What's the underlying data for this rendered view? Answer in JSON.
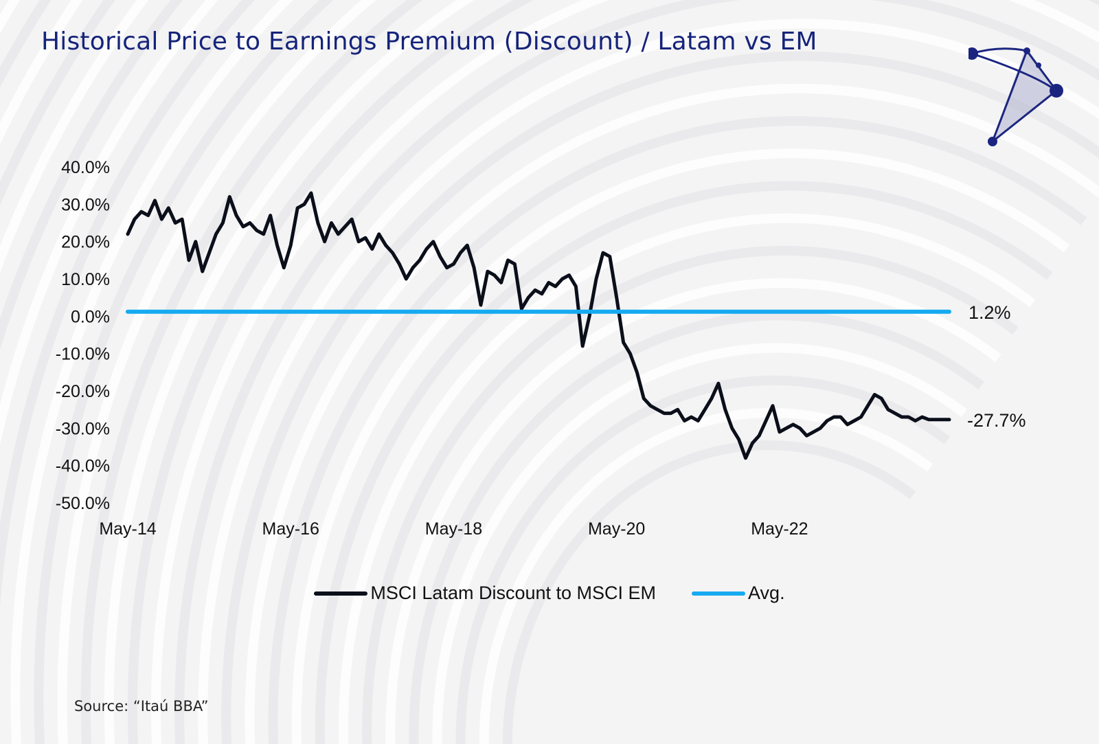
{
  "page": {
    "title": "Historical Price to Earnings Premium (Discount) / Latam vs EM",
    "source": "Source: “Itaú BBA”"
  },
  "colors": {
    "title": "#15237a",
    "series_line": "#0b0f1a",
    "avg_line": "#16aaf0",
    "logo": "#1b2580"
  },
  "logo": {
    "icon": "constellation-logo-icon"
  },
  "chart_data": {
    "type": "line",
    "title": "",
    "xlabel": "",
    "ylabel": "",
    "ylim": [
      -50,
      40
    ],
    "y_ticks": [
      40,
      30,
      20,
      10,
      0,
      -10,
      -20,
      -30,
      -40,
      -50
    ],
    "y_tick_labels": [
      "40.0%",
      "30.0%",
      "20.0%",
      "10.0%",
      "0.0%",
      "-10.0%",
      "-20.0%",
      "-30.0%",
      "-40.0%",
      "-50.0%"
    ],
    "x_range": [
      "2014-05",
      "2024-06"
    ],
    "x_ticks": [
      "2014-05",
      "2016-05",
      "2018-05",
      "2020-05",
      "2022-05"
    ],
    "x_tick_labels": [
      "May-14",
      "May-16",
      "May-18",
      "May-20",
      "May-22"
    ],
    "grid": false,
    "legend_position": "bottom",
    "series": [
      {
        "name": "MSCI Latam Discount to MSCI EM",
        "color": "#0b0f1a",
        "end_label": "-27.7%",
        "x": [
          "2014-05",
          "2014-06",
          "2014-07",
          "2014-08",
          "2014-09",
          "2014-10",
          "2014-11",
          "2014-12",
          "2015-01",
          "2015-02",
          "2015-03",
          "2015-04",
          "2015-05",
          "2015-06",
          "2015-07",
          "2015-08",
          "2015-09",
          "2015-10",
          "2015-11",
          "2015-12",
          "2016-01",
          "2016-02",
          "2016-03",
          "2016-04",
          "2016-05",
          "2016-06",
          "2016-07",
          "2016-08",
          "2016-09",
          "2016-10",
          "2016-11",
          "2016-12",
          "2017-01",
          "2017-02",
          "2017-03",
          "2017-04",
          "2017-05",
          "2017-06",
          "2017-07",
          "2017-08",
          "2017-09",
          "2017-10",
          "2017-11",
          "2017-12",
          "2018-01",
          "2018-02",
          "2018-03",
          "2018-04",
          "2018-05",
          "2018-06",
          "2018-07",
          "2018-08",
          "2018-09",
          "2018-10",
          "2018-11",
          "2018-12",
          "2019-01",
          "2019-02",
          "2019-03",
          "2019-04",
          "2019-05",
          "2019-06",
          "2019-07",
          "2019-08",
          "2019-09",
          "2019-10",
          "2019-11",
          "2019-12",
          "2020-01",
          "2020-02",
          "2020-03",
          "2020-04",
          "2020-05",
          "2020-06",
          "2020-07",
          "2020-08",
          "2020-09",
          "2020-10",
          "2020-11",
          "2020-12",
          "2021-01",
          "2021-02",
          "2021-03",
          "2021-04",
          "2021-05",
          "2021-06",
          "2021-07",
          "2021-08",
          "2021-09",
          "2021-10",
          "2021-11",
          "2021-12",
          "2022-01",
          "2022-02",
          "2022-03",
          "2022-04",
          "2022-05",
          "2022-06",
          "2022-07",
          "2022-08",
          "2022-09",
          "2022-10",
          "2022-11",
          "2022-12",
          "2023-01",
          "2023-02",
          "2023-03",
          "2023-04",
          "2023-05",
          "2023-06",
          "2023-07",
          "2023-08",
          "2023-09",
          "2023-10",
          "2023-11",
          "2023-12",
          "2024-01",
          "2024-02",
          "2024-03",
          "2024-04",
          "2024-05",
          "2024-06"
        ],
        "y": [
          22,
          26,
          28,
          27,
          31,
          26,
          29,
          25,
          26,
          15,
          20,
          12,
          17,
          22,
          25,
          32,
          27,
          24,
          25,
          23,
          22,
          27,
          19,
          13,
          19,
          29,
          30,
          33,
          25,
          20,
          25,
          22,
          24,
          26,
          20,
          21,
          18,
          22,
          19,
          17,
          14,
          10,
          13,
          15,
          18,
          20,
          16,
          13,
          14,
          17,
          19,
          13,
          3,
          12,
          11,
          9,
          15,
          14,
          2,
          5,
          7,
          6,
          9,
          8,
          10,
          11,
          8,
          -8,
          0,
          10,
          17,
          16,
          5,
          -7,
          -10,
          -15,
          -22,
          -24,
          -25,
          -26,
          -26,
          -25,
          -28,
          -27,
          -28,
          -25,
          -22,
          -18,
          -25,
          -30,
          -33,
          -38,
          -34,
          -32,
          -28,
          -24,
          -31,
          -30,
          -29,
          -30,
          -32,
          -31,
          -30,
          -28,
          -27,
          -27,
          -29,
          -28,
          -27,
          -24,
          -21,
          -22,
          -25,
          -26,
          -27,
          -27,
          -28,
          -27,
          -27.7,
          -27.7,
          -27.7,
          -27.7
        ]
      },
      {
        "name": "Avg.",
        "color": "#16aaf0",
        "end_label": "1.2%",
        "x": [
          "2014-05",
          "2024-06"
        ],
        "y": [
          1.2,
          1.2
        ]
      }
    ]
  },
  "legend": {
    "items": [
      "MSCI Latam Discount to MSCI EM",
      "Avg."
    ]
  }
}
